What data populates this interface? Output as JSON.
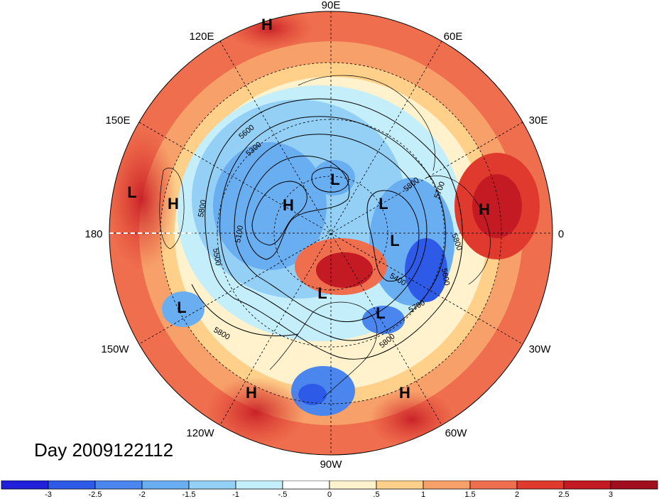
{
  "map": {
    "projection": "north polar stereographic",
    "field": "500 hPa geopotential height contours with standardized anomaly shading",
    "longitude_labels": [
      "90E",
      "60E",
      "30E",
      "0",
      "30W",
      "60W",
      "90W",
      "120W",
      "150W",
      "180",
      "150E",
      "120E"
    ],
    "contour_labels": [
      "5800",
      "5600",
      "5500",
      "5100",
      "5300",
      "5400",
      "5600",
      "5700",
      "5800",
      "5700",
      "5800",
      "5800",
      "5800"
    ],
    "pressure_centers": [
      {
        "type": "H",
        "region": "top near 100E"
      },
      {
        "type": "L",
        "region": "far west Pacific edge"
      },
      {
        "type": "H",
        "region": "Pacific west of dateline"
      },
      {
        "type": "L",
        "region": "Siberia"
      },
      {
        "type": "H",
        "region": "East Siberia / Chukotka"
      },
      {
        "type": "L",
        "region": "Scandinavia / Barents"
      },
      {
        "type": "L",
        "region": "Northern Europe"
      },
      {
        "type": "H",
        "region": "Europe / Black Sea"
      },
      {
        "type": "L",
        "region": "Hudson Bay"
      },
      {
        "type": "L",
        "region": "Gulf of Alaska"
      },
      {
        "type": "L",
        "region": "US East Coast"
      },
      {
        "type": "H",
        "region": "Eastern Pacific"
      },
      {
        "type": "H",
        "region": "Western Atlantic"
      }
    ],
    "colors": {
      "land_outline": "#000000",
      "background": "#ffffff"
    }
  },
  "title": {
    "day_label": "Day 2009122112"
  },
  "colorbar": {
    "tick_labels": [
      "-3",
      "-2.5",
      "-2",
      "-1.5",
      "-1",
      "-.5",
      "0",
      ".5",
      "1",
      "1.5",
      "2",
      "2.5",
      "3"
    ],
    "colors": [
      "#2020d8",
      "#2e5ae8",
      "#4a86ee",
      "#6aaef2",
      "#94d0f6",
      "#c4eefa",
      "#ffffff",
      "#fff2cc",
      "#fed08a",
      "#f7a06a",
      "#ee6e4e",
      "#e0392e",
      "#c41a24",
      "#a10f1f"
    ]
  }
}
